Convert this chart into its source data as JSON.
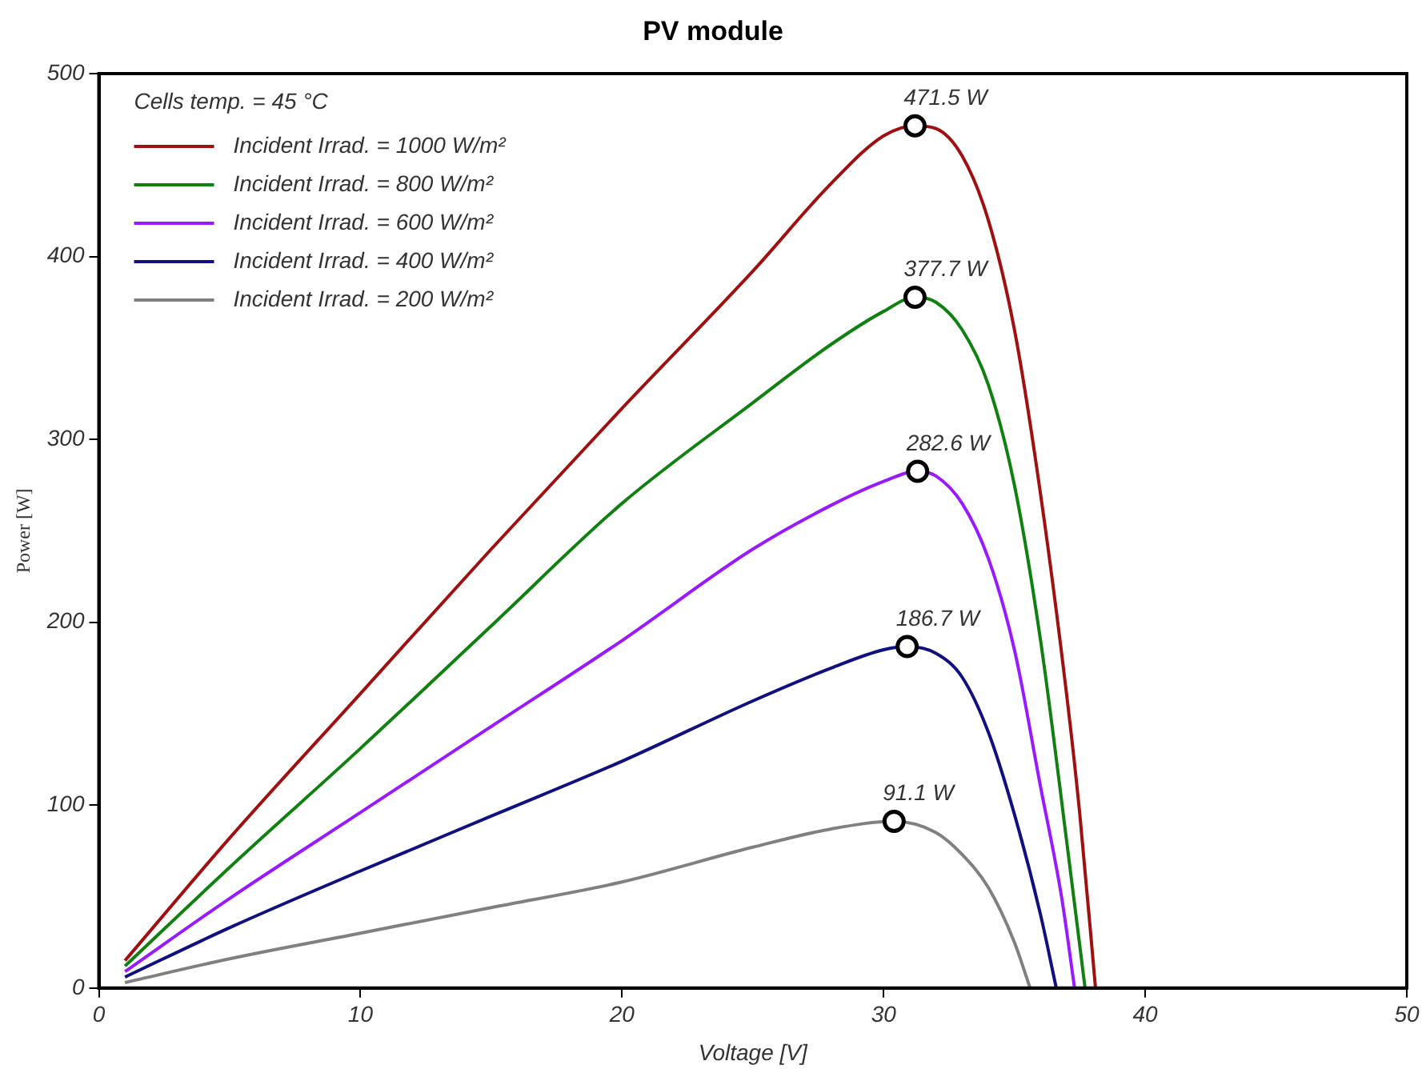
{
  "chart_data": {
    "type": "line",
    "title": "PV module",
    "xlabel": "Voltage [V]",
    "ylabel": "Power [W]",
    "legend_title": "Cells temp. = 45 °C",
    "legend": "top left",
    "grid": false,
    "marker": "none",
    "xlim": [
      0,
      50
    ],
    "xticks": [
      0,
      10,
      20,
      30,
      40,
      50
    ],
    "ylim": [
      0,
      500
    ],
    "yticks": [
      0,
      100,
      200,
      300,
      400,
      500
    ],
    "series": [
      {
        "name": "Incident Irrad. = 1000 W/m²",
        "color": "#a01010",
        "x": [
          1,
          5,
          10,
          15,
          20,
          25,
          28,
          30,
          31.2,
          32,
          33,
          34,
          35,
          36,
          37,
          37.5,
          38.1
        ],
        "values": [
          15,
          82,
          161,
          240,
          317,
          392,
          440,
          466,
          471.5,
          470,
          455,
          420,
          360,
          270,
          160,
          95,
          0
        ]
      },
      {
        "name": "Incident Irrad. = 800 W/m²",
        "color": "#108010",
        "x": [
          1,
          5,
          10,
          15,
          20,
          25,
          28,
          30,
          31.2,
          32,
          33,
          34,
          35,
          36,
          37,
          37.7
        ],
        "values": [
          12,
          66,
          131,
          198,
          265,
          320,
          352,
          370,
          377.7,
          375,
          360,
          330,
          275,
          190,
          80,
          0
        ]
      },
      {
        "name": "Incident Irrad. = 600 W/m²",
        "color": "#9a1aff",
        "x": [
          1,
          5,
          10,
          15,
          20,
          25,
          28,
          30,
          31.3,
          32,
          33,
          34,
          35,
          36,
          36.8,
          37.3
        ],
        "values": [
          9,
          49,
          96,
          143,
          190,
          240,
          264,
          277,
          282.6,
          280,
          265,
          235,
          185,
          110,
          50,
          0
        ]
      },
      {
        "name": "Incident Irrad. = 400 W/m²",
        "color": "#101080",
        "x": [
          1,
          5,
          10,
          15,
          20,
          25,
          28,
          30,
          30.9,
          32,
          33,
          34,
          35,
          36,
          36.6
        ],
        "values": [
          6,
          33,
          64,
          94,
          124,
          157,
          175,
          185,
          186.7,
          183,
          170,
          140,
          95,
          40,
          0
        ]
      },
      {
        "name": "Incident Irrad. = 200 W/m²",
        "color": "#808080",
        "x": [
          1,
          5,
          10,
          15,
          20,
          25,
          28,
          30.4,
          32,
          33,
          34,
          35,
          35.6
        ],
        "values": [
          3,
          16,
          30,
          44,
          58,
          77,
          87,
          91.1,
          85,
          73,
          55,
          25,
          0
        ]
      }
    ],
    "annotations": [
      {
        "text": "471.5 W",
        "x": 31.2,
        "y": 471.5
      },
      {
        "text": "377.7 W",
        "x": 31.2,
        "y": 377.7
      },
      {
        "text": "282.6 W",
        "x": 31.3,
        "y": 282.6
      },
      {
        "text": "186.7 W",
        "x": 30.9,
        "y": 186.7
      },
      {
        "text": "91.1 W",
        "x": 30.4,
        "y": 91.1
      }
    ]
  }
}
